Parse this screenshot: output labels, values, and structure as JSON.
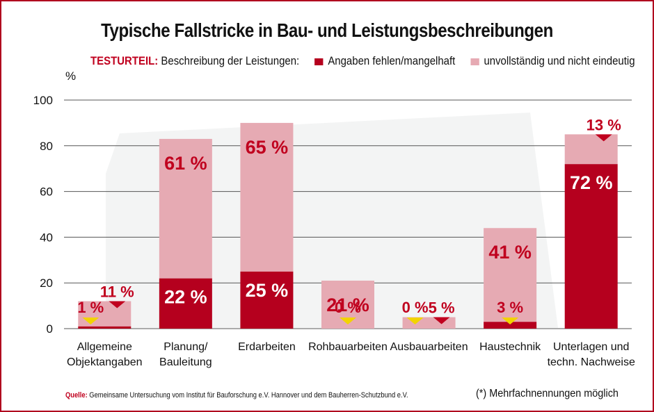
{
  "colors": {
    "dark": "#b5001e",
    "light": "#e6aab3",
    "accent": "#c0001e",
    "marker": "#f2d400"
  },
  "title": "Typische Fallstricke in Bau- und Leistungsbeschreibungen",
  "legend": {
    "label": "TESTURTEIL:",
    "description": "Beschreibung der Leistungen:",
    "items": [
      "Angaben fehlen/mangelhaft",
      "unvollständig und nicht eindeutig"
    ]
  },
  "source": {
    "label": "Quelle:",
    "text": "Gemeinsame Untersuchung vom Institut für Bauforschung e.V. Hannover und dem Bauherren-Schutzbund e.V."
  },
  "footnote": "(*) Mehrfachnennungen möglich",
  "chart_data": {
    "type": "bar",
    "stacked": true,
    "unit": "%",
    "ylim": [
      0,
      100
    ],
    "yticks": [
      0,
      20,
      40,
      60,
      80,
      100
    ],
    "grid": true,
    "categories": [
      [
        "Allgemeine",
        "Objektangaben"
      ],
      [
        "Planung/",
        "Bauleitung"
      ],
      [
        "Erdarbeiten"
      ],
      [
        "Rohbauarbeiten"
      ],
      [
        "Ausbauarbeiten"
      ],
      [
        "Haustechnik"
      ],
      [
        "Unterlagen und",
        "techn. Nachweise"
      ]
    ],
    "series": [
      {
        "name": "Angaben fehlen/mangelhaft",
        "values": [
          1,
          22,
          25,
          0,
          0,
          3,
          72
        ],
        "labels": [
          "1 %",
          "22 %",
          "25 %",
          "0 %",
          "0 %",
          "3 %",
          "72 %"
        ]
      },
      {
        "name": "unvollständig und nicht eindeutig",
        "values": [
          11,
          61,
          65,
          21,
          5,
          41,
          13
        ],
        "labels": [
          "11 %",
          "61 %",
          "65 %",
          "21 %",
          "5 %",
          "41 %",
          "13 %"
        ]
      }
    ]
  }
}
